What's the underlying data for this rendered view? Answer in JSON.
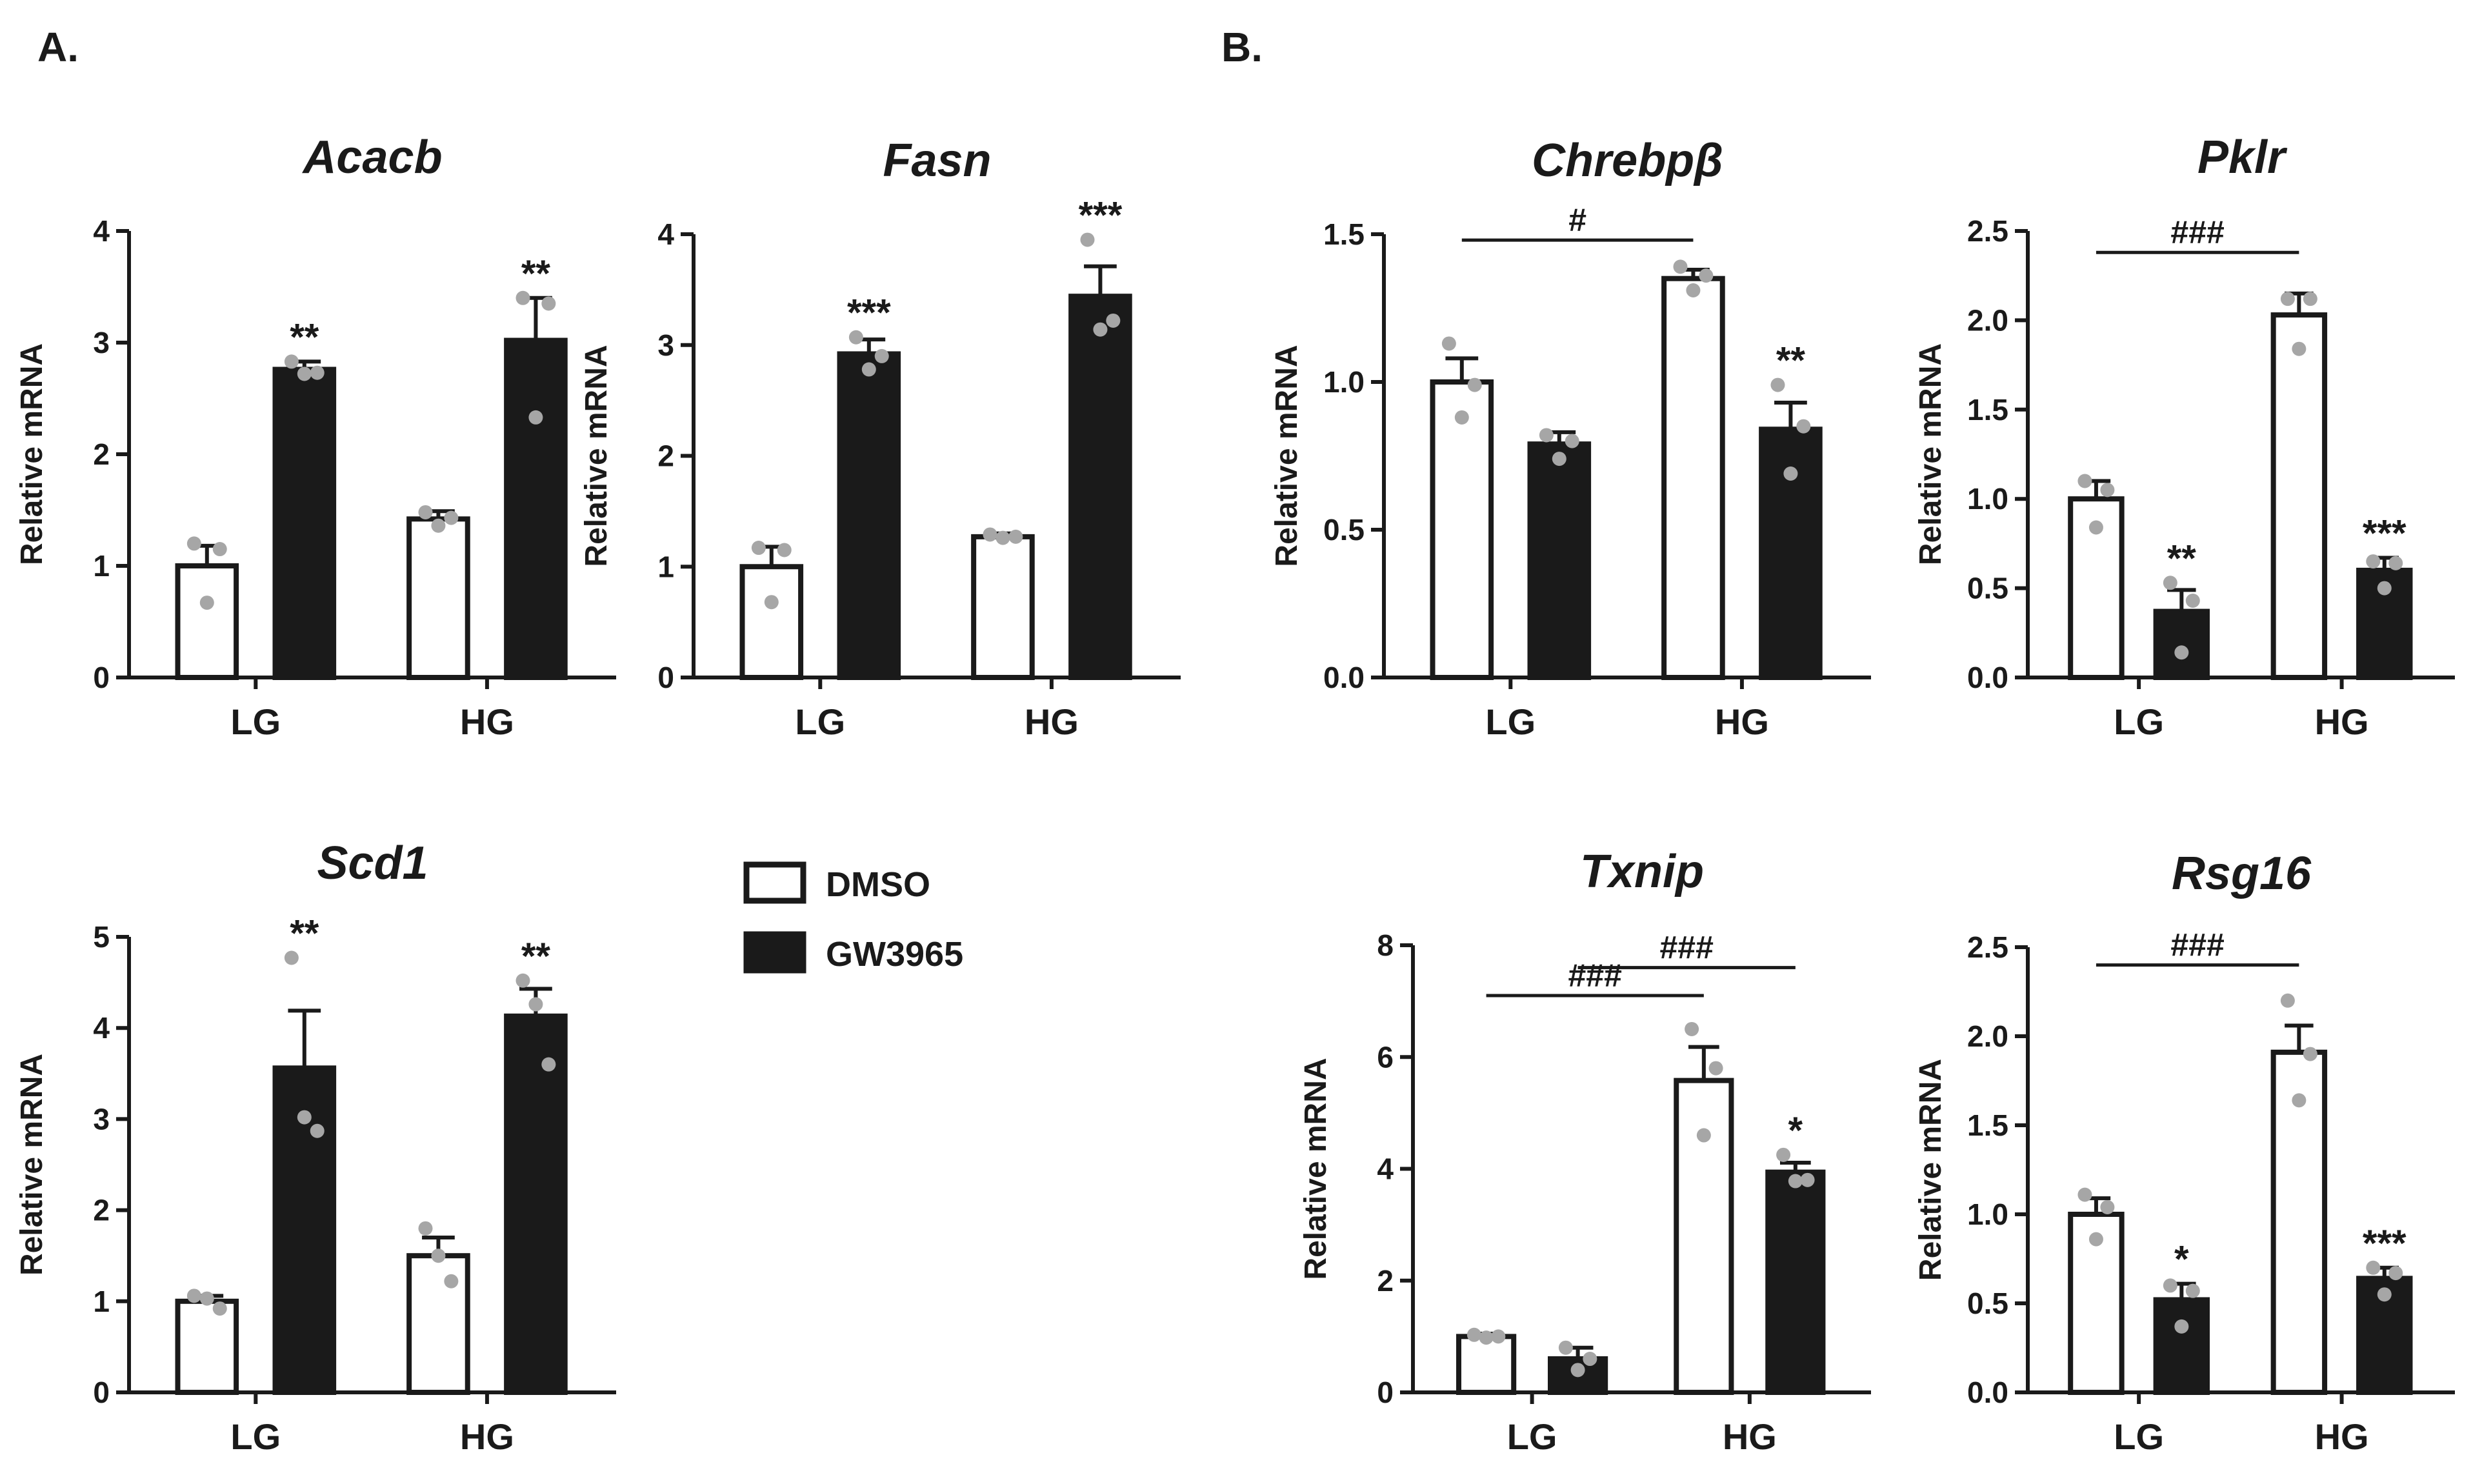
{
  "panels": [
    {
      "key": "A",
      "label": "A."
    },
    {
      "key": "B",
      "label": "B."
    }
  ],
  "legend": {
    "items": [
      {
        "label": "DMSO",
        "fill": "#ffffff"
      },
      {
        "label": "GW3965",
        "fill": "#1a1a1a"
      }
    ]
  },
  "colors": {
    "dmso": "#ffffff",
    "gw3965": "#1a1a1a",
    "stroke": "#1a1a1a",
    "point": "#a6a6a6"
  },
  "chart_data": [
    {
      "id": "acacb",
      "panel": "A",
      "type": "bar",
      "title": "Acacb",
      "xlabel": "",
      "ylabel": "Relative mRNA",
      "ylim": [
        0,
        4
      ],
      "yticks": [
        "0",
        "1",
        "2",
        "3",
        "4"
      ],
      "ytick_values": [
        0,
        1,
        2,
        3,
        4
      ],
      "categories": [
        "LG",
        "HG"
      ],
      "series": [
        {
          "name": "DMSO",
          "values": [
            1.0,
            1.42
          ],
          "sem": [
            0.18,
            0.07
          ],
          "points": [
            [
              1.2,
              0.67,
              1.15
            ],
            [
              1.48,
              1.36,
              1.43
            ]
          ],
          "sig": [
            "",
            ""
          ]
        },
        {
          "name": "GW3965",
          "values": [
            2.76,
            3.02
          ],
          "sem": [
            0.07,
            0.38
          ],
          "points": [
            [
              2.83,
              2.72,
              2.73
            ],
            [
              3.4,
              2.33,
              3.35
            ]
          ],
          "sig": [
            "**",
            "**"
          ]
        }
      ],
      "comparisons": []
    },
    {
      "id": "fasn",
      "panel": "A",
      "type": "bar",
      "title": "Fasn",
      "xlabel": "",
      "ylabel": "Relative mRNA",
      "ylim": [
        0,
        4
      ],
      "yticks": [
        "0",
        "1",
        "2",
        "3",
        "4"
      ],
      "ytick_values": [
        0,
        1,
        2,
        3,
        4
      ],
      "categories": [
        "LG",
        "HG"
      ],
      "series": [
        {
          "name": "DMSO",
          "values": [
            1.0,
            1.27
          ],
          "sem": [
            0.18,
            0.03
          ],
          "points": [
            [
              1.17,
              0.68,
              1.15
            ],
            [
              1.29,
              1.26,
              1.27
            ]
          ],
          "sig": [
            "",
            ""
          ]
        },
        {
          "name": "GW3965",
          "values": [
            2.92,
            3.44
          ],
          "sem": [
            0.13,
            0.27
          ],
          "points": [
            [
              3.07,
              2.78,
              2.9
            ],
            [
              3.95,
              3.14,
              3.22
            ]
          ],
          "sig": [
            "***",
            "***"
          ]
        }
      ],
      "comparisons": []
    },
    {
      "id": "scd1",
      "panel": "A",
      "type": "bar",
      "title": "Scd1",
      "xlabel": "",
      "ylabel": "Relative mRNA",
      "ylim": [
        0,
        5
      ],
      "yticks": [
        "0",
        "1",
        "2",
        "3",
        "4",
        "5"
      ],
      "ytick_values": [
        0,
        1,
        2,
        3,
        4,
        5
      ],
      "categories": [
        "LG",
        "HG"
      ],
      "series": [
        {
          "name": "DMSO",
          "values": [
            1.0,
            1.5
          ],
          "sem": [
            0.06,
            0.2
          ],
          "points": [
            [
              1.06,
              1.03,
              0.92
            ],
            [
              1.8,
              1.5,
              1.22
            ]
          ],
          "sig": [
            "",
            ""
          ]
        },
        {
          "name": "GW3965",
          "values": [
            3.56,
            4.13
          ],
          "sem": [
            0.63,
            0.3
          ],
          "points": [
            [
              4.77,
              3.02,
              2.87
            ],
            [
              4.52,
              4.26,
              3.6
            ]
          ],
          "sig": [
            "**",
            "**"
          ]
        }
      ],
      "comparisons": []
    },
    {
      "id": "chrebpb",
      "panel": "B",
      "type": "bar",
      "title": "Chrebpβ",
      "xlabel": "",
      "ylabel": "Relative mRNA",
      "ylim": [
        0,
        1.5
      ],
      "yticks": [
        "0.0",
        "0.5",
        "1.0",
        "1.5"
      ],
      "ytick_values": [
        0,
        0.5,
        1.0,
        1.5
      ],
      "categories": [
        "LG",
        "HG"
      ],
      "series": [
        {
          "name": "DMSO",
          "values": [
            1.0,
            1.35
          ],
          "sem": [
            0.08,
            0.03
          ],
          "points": [
            [
              1.13,
              0.88,
              0.99
            ],
            [
              1.39,
              1.31,
              1.36
            ]
          ],
          "sig": [
            "",
            ""
          ]
        },
        {
          "name": "GW3965",
          "values": [
            0.79,
            0.84
          ],
          "sem": [
            0.04,
            0.09
          ],
          "points": [
            [
              0.82,
              0.74,
              0.8
            ],
            [
              0.99,
              0.69,
              0.85
            ]
          ],
          "sig": [
            "",
            "**"
          ]
        }
      ],
      "comparisons": [
        {
          "label": "#",
          "from": [
            0,
            0
          ],
          "to": [
            1,
            0
          ],
          "level": 1.48
        }
      ]
    },
    {
      "id": "pklr",
      "panel": "B",
      "type": "bar",
      "title": "Pklr",
      "xlabel": "",
      "ylabel": "Relative mRNA",
      "ylim": [
        0,
        2.5
      ],
      "yticks": [
        "0.0",
        "0.5",
        "1.0",
        "1.5",
        "2.0",
        "2.5"
      ],
      "ytick_values": [
        0,
        0.5,
        1.0,
        1.5,
        2.0,
        2.5
      ],
      "categories": [
        "LG",
        "HG"
      ],
      "series": [
        {
          "name": "DMSO",
          "values": [
            1.0,
            2.03
          ],
          "sem": [
            0.1,
            0.12
          ],
          "points": [
            [
              1.1,
              0.84,
              1.05
            ],
            [
              2.12,
              1.84,
              2.12
            ]
          ],
          "sig": [
            "",
            ""
          ]
        },
        {
          "name": "GW3965",
          "values": [
            0.37,
            0.6
          ],
          "sem": [
            0.12,
            0.07
          ],
          "points": [
            [
              0.53,
              0.14,
              0.43
            ],
            [
              0.65,
              0.5,
              0.64
            ]
          ],
          "sig": [
            "**",
            "***"
          ]
        }
      ],
      "comparisons": [
        {
          "label": "###",
          "from": [
            0,
            0
          ],
          "to": [
            1,
            0
          ],
          "level": 2.38
        }
      ]
    },
    {
      "id": "txnip",
      "panel": "B",
      "type": "bar",
      "title": "Txnip",
      "xlabel": "",
      "ylabel": "Relative mRNA",
      "ylim": [
        0,
        8
      ],
      "yticks": [
        "0",
        "2",
        "4",
        "6",
        "8"
      ],
      "ytick_values": [
        0,
        2,
        4,
        6,
        8
      ],
      "categories": [
        "LG",
        "HG"
      ],
      "series": [
        {
          "name": "DMSO",
          "values": [
            1.0,
            5.58
          ],
          "sem": [
            0.05,
            0.6
          ],
          "points": [
            [
              1.03,
              0.98,
              1.0
            ],
            [
              6.5,
              4.6,
              5.8
            ]
          ],
          "sig": [
            "",
            ""
          ]
        },
        {
          "name": "GW3965",
          "values": [
            0.6,
            3.94
          ],
          "sem": [
            0.2,
            0.17
          ],
          "points": [
            [
              0.8,
              0.4,
              0.6
            ],
            [
              4.25,
              3.78,
              3.8
            ]
          ],
          "sig": [
            "",
            "*"
          ]
        }
      ],
      "comparisons": [
        {
          "label": "###",
          "from": [
            0,
            0
          ],
          "to": [
            1,
            0
          ],
          "level": 7.1
        },
        {
          "label": "###",
          "from": [
            0,
            1
          ],
          "to": [
            1,
            1
          ],
          "level": 7.6
        }
      ]
    },
    {
      "id": "rsg16",
      "panel": "B",
      "type": "bar",
      "title": "Rsg16",
      "xlabel": "",
      "ylabel": "Relative mRNA",
      "ylim": [
        0,
        2.5
      ],
      "yticks": [
        "0.0",
        "0.5",
        "1.0",
        "1.5",
        "2.0",
        "2.5"
      ],
      "ytick_values": [
        0,
        0.5,
        1.0,
        1.5,
        2.0,
        2.5
      ],
      "categories": [
        "LG",
        "HG"
      ],
      "series": [
        {
          "name": "DMSO",
          "values": [
            1.0,
            1.91
          ],
          "sem": [
            0.09,
            0.15
          ],
          "points": [
            [
              1.11,
              0.86,
              1.04
            ],
            [
              2.2,
              1.64,
              1.9
            ]
          ],
          "sig": [
            "",
            ""
          ]
        },
        {
          "name": "GW3965",
          "values": [
            0.52,
            0.64
          ],
          "sem": [
            0.09,
            0.06
          ],
          "points": [
            [
              0.6,
              0.37,
              0.57
            ],
            [
              0.7,
              0.55,
              0.67
            ]
          ],
          "sig": [
            "*",
            "***"
          ]
        }
      ],
      "comparisons": [
        {
          "label": "###",
          "from": [
            0,
            0
          ],
          "to": [
            1,
            0
          ],
          "level": 2.4
        }
      ]
    }
  ]
}
